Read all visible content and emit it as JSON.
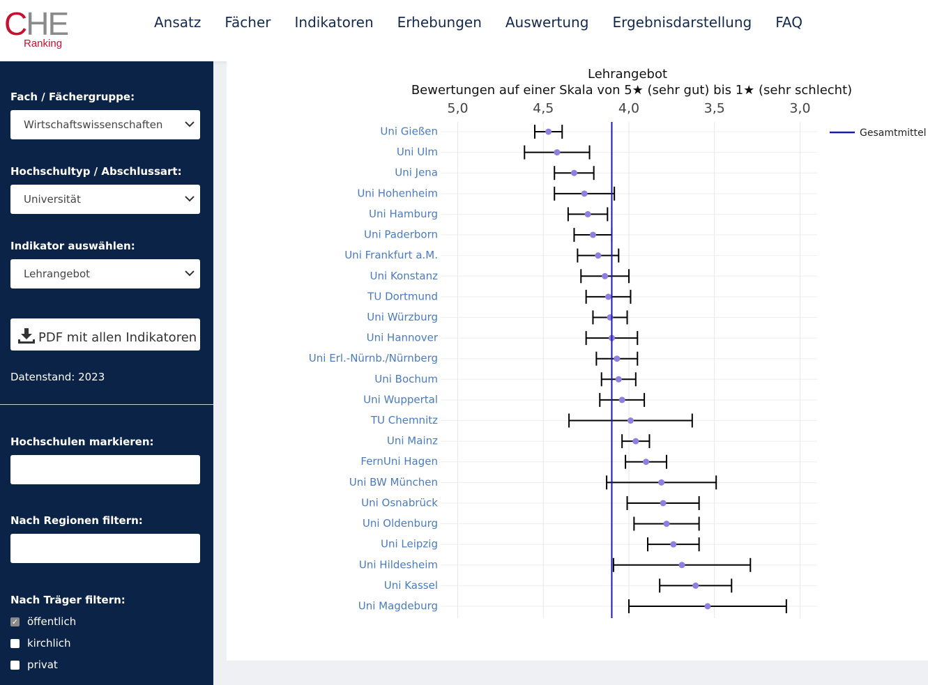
{
  "header": {
    "logo": {
      "name": "CHE",
      "sub": "Ranking"
    },
    "nav": [
      "Ansatz",
      "Fächer",
      "Indikatoren",
      "Erhebungen",
      "Auswertung",
      "Ergebnisdarstellung",
      "FAQ"
    ]
  },
  "sidebar": {
    "selects": [
      {
        "label": "Fach / Fächergruppe:",
        "value": "Wirtschaftswissenschaften"
      },
      {
        "label": "Hochschultyp / Abschlussart:",
        "value": "Universität"
      },
      {
        "label": "Indikator auswählen:",
        "value": "Lehrangebot"
      }
    ],
    "button": "PDF mit allen Indikatoren",
    "data_date": "Datenstand: 2023",
    "inputs": [
      {
        "label": "Hochschulen markieren:"
      },
      {
        "label": "Nach Regionen filtern:"
      }
    ],
    "checkbox_group": {
      "label": "Nach Träger filtern:",
      "options": [
        {
          "label": "öffentlich",
          "checked": true
        },
        {
          "label": "kirchlich",
          "checked": false
        },
        {
          "label": "privat",
          "checked": false
        }
      ]
    }
  },
  "chart_data": {
    "type": "errorbar",
    "title": "Lehrangebot",
    "subtitle": "Bewertungen auf einer Skala von 5★ (sehr gut) bis 1★ (sehr schlecht)",
    "categories": [
      "Uni Gießen",
      "Uni Ulm",
      "Uni Jena",
      "Uni Hohenheim",
      "Uni Hamburg",
      "Uni Paderborn",
      "Uni Frankfurt a.M.",
      "Uni Konstanz",
      "TU Dortmund",
      "Uni Würzburg",
      "Uni Hannover",
      "Uni Erl.-Nürnb./Nürnberg",
      "Uni Bochum",
      "Uni Wuppertal",
      "TU Chemnitz",
      "Uni Mainz",
      "FernUni Hagen",
      "Uni BW München",
      "Uni Osnabrück",
      "Uni Oldenburg",
      "Uni Leipzig",
      "Uni Hildesheim",
      "Uni Kassel",
      "Uni Magdeburg"
    ],
    "values": [
      4.47,
      4.42,
      4.32,
      4.26,
      4.24,
      4.21,
      4.18,
      4.14,
      4.12,
      4.11,
      4.1,
      4.07,
      4.06,
      4.04,
      3.99,
      3.96,
      3.9,
      3.81,
      3.8,
      3.78,
      3.74,
      3.69,
      3.61,
      3.54
    ],
    "errors": [
      0.08,
      0.19,
      0.115,
      0.175,
      0.115,
      0.11,
      0.12,
      0.14,
      0.13,
      0.1,
      0.15,
      0.12,
      0.1,
      0.13,
      0.36,
      0.08,
      0.12,
      0.32,
      0.21,
      0.19,
      0.15,
      0.4,
      0.21,
      0.46
    ],
    "color": "#8f7fe0",
    "error_color": "#000000",
    "reference_line": {
      "name": "Gesamtmittel",
      "value": 4.1,
      "color": "#1a1ab0"
    },
    "xlim": [
      5.1,
      2.9
    ],
    "xticks": [
      {
        "value": 5,
        "label": "5,0"
      },
      {
        "value": 4.5,
        "label": "4,5"
      },
      {
        "value": 4,
        "label": "4,0"
      },
      {
        "value": 3.5,
        "label": "3,5"
      },
      {
        "value": 3,
        "label": "3,0"
      }
    ],
    "grid": true,
    "legend": "top-right"
  }
}
